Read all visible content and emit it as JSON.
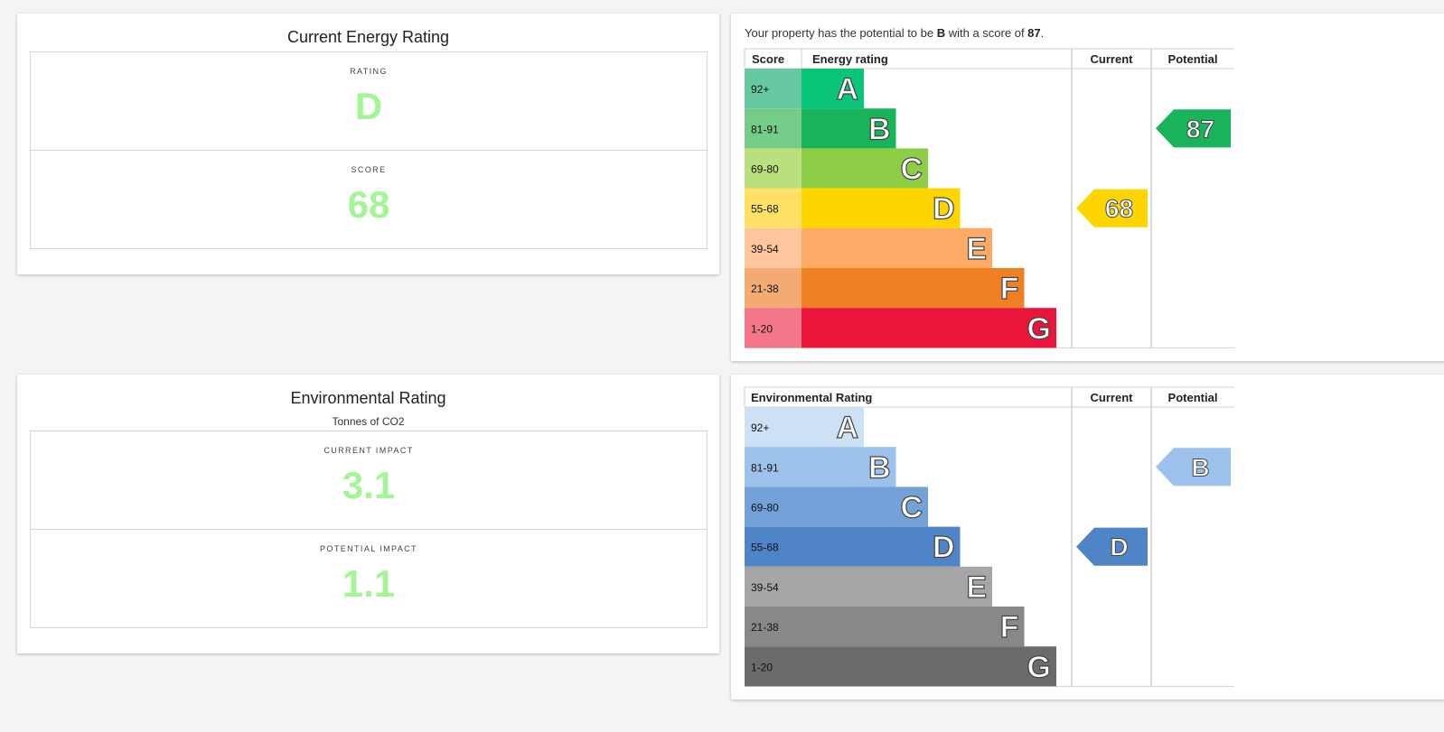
{
  "energy_card": {
    "title": "Current Energy Rating",
    "rating_label": "RATING",
    "rating_value": "D",
    "score_label": "SCORE",
    "score_value": "68"
  },
  "env_card": {
    "title": "Environmental Rating",
    "subtitle": "Tonnes of CO2",
    "current_label": "CURRENT IMPACT",
    "current_value": "3.1",
    "potential_label": "POTENTIAL IMPACT",
    "potential_value": "1.1"
  },
  "energy_chart": {
    "potential_prefix": "Your property has the potential to be ",
    "potential_band": "B",
    "potential_mid": " with a score of ",
    "potential_score": "87",
    "potential_suffix": ".",
    "headers": {
      "score": "Score",
      "rating": "Energy rating",
      "current": "Current",
      "potential": "Potential"
    },
    "bands": [
      {
        "range": "92+",
        "letter": "A",
        "color": "#0ac47a",
        "light": "#66c9a1"
      },
      {
        "range": "81-91",
        "letter": "B",
        "color": "#19b459",
        "light": "#75cc89"
      },
      {
        "range": "69-80",
        "letter": "C",
        "color": "#8dce46",
        "light": "#b9e07f"
      },
      {
        "range": "55-68",
        "letter": "D",
        "color": "#ffd500",
        "light": "#ffe265"
      },
      {
        "range": "39-54",
        "letter": "E",
        "color": "#fcaa65",
        "light": "#fec69c"
      },
      {
        "range": "21-38",
        "letter": "F",
        "color": "#ef8023",
        "light": "#f4ab73"
      },
      {
        "range": "1-20",
        "letter": "G",
        "color": "#e9153b",
        "light": "#f27688"
      }
    ],
    "current": {
      "band": "D",
      "label": "68",
      "color": "#ffd500"
    },
    "potential": {
      "band": "B",
      "label": "87",
      "color": "#19b459"
    }
  },
  "env_chart": {
    "headers": {
      "rating": "Environmental Rating",
      "current": "Current",
      "potential": "Potential"
    },
    "bands": [
      {
        "range": "92+",
        "letter": "A",
        "color": "#cde1f5"
      },
      {
        "range": "81-91",
        "letter": "B",
        "color": "#9cc1ea"
      },
      {
        "range": "69-80",
        "letter": "C",
        "color": "#74a2d8"
      },
      {
        "range": "55-68",
        "letter": "D",
        "color": "#4f84c6"
      },
      {
        "range": "39-54",
        "letter": "E",
        "color": "#a6a6a6"
      },
      {
        "range": "21-38",
        "letter": "F",
        "color": "#888888"
      },
      {
        "range": "1-20",
        "letter": "G",
        "color": "#6b6b6b"
      }
    ],
    "current": {
      "band": "D",
      "label": "D",
      "color": "#4f84c6"
    },
    "potential": {
      "band": "B",
      "label": "B",
      "color": "#9cc1ea"
    }
  }
}
